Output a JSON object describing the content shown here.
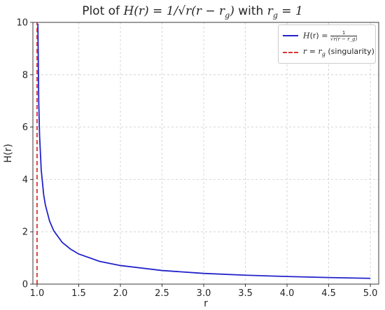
{
  "chart_data": {
    "type": "line",
    "title_prefix": "Plot of ",
    "title_formula": "H(r) = 1/√r(r − r",
    "title_formula_sub": "g",
    "title_formula_end": ")",
    "title_mid": " with ",
    "title_param": "r",
    "title_param_sub": "g",
    "title_param_value": " = 1",
    "xlabel": "r",
    "ylabel": "H(r)",
    "xlim": [
      0.95,
      5.1
    ],
    "ylim": [
      0,
      10
    ],
    "x_ticks": [
      1.0,
      1.5,
      2.0,
      2.5,
      3.0,
      3.5,
      4.0,
      4.5,
      5.0
    ],
    "x_tick_labels": [
      "1.0",
      "1.5",
      "2.0",
      "2.5",
      "3.0",
      "3.5",
      "4.0",
      "4.5",
      "5.0"
    ],
    "y_ticks": [
      0,
      2,
      4,
      6,
      8,
      10
    ],
    "y_tick_labels": [
      "0",
      "2",
      "4",
      "6",
      "8",
      "10"
    ],
    "grid": true,
    "legend_placement": "top-right",
    "series": [
      {
        "name": "H(r) = 1/√r(r − r_g)",
        "color": "#2222cc",
        "style": "solid",
        "x": [
          1.01,
          1.02,
          1.03,
          1.05,
          1.08,
          1.1,
          1.15,
          1.2,
          1.3,
          1.4,
          1.5,
          1.75,
          2.0,
          2.5,
          3.0,
          3.5,
          4.0,
          4.5,
          5.0
        ],
        "y": [
          9.95,
          7.0,
          5.69,
          4.36,
          3.4,
          3.02,
          2.41,
          2.04,
          1.6,
          1.34,
          1.15,
          0.87,
          0.71,
          0.52,
          0.41,
          0.34,
          0.29,
          0.25,
          0.22
        ]
      },
      {
        "name": "r = r_g (singularity)",
        "color": "#dd3333",
        "style": "dashed",
        "x": [
          1.0,
          1.0
        ],
        "y": [
          0,
          10
        ]
      }
    ]
  },
  "legend": {
    "h_label_lhs": "H",
    "h_label_rest": "(r) = ",
    "h_frac_num": "1",
    "h_frac_den": "√r(r − r_g)",
    "rg_label_r": "r",
    "rg_label_eq": " = ",
    "rg_label_rg": "r",
    "rg_label_sub": "g",
    "rg_label_suffix": " (singularity)"
  }
}
